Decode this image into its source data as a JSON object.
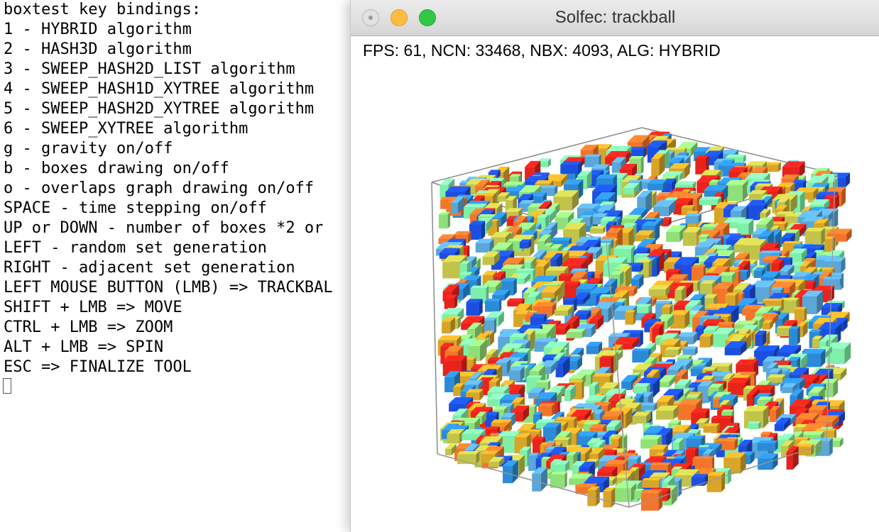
{
  "terminal": {
    "lines": [
      "boxtest key bindings:",
      "1 - HYBRID algorithm",
      "2 - HASH3D algorithm",
      "3 - SWEEP_HASH2D_LIST algorithm",
      "4 - SWEEP_HASH1D_XYTREE algorithm",
      "5 - SWEEP_HASH2D_XYTREE algorithm",
      "6 - SWEEP_XYTREE algorithm",
      "g - gravity on/off",
      "b - boxes drawing on/off",
      "o - overlaps graph drawing on/off",
      "SPACE - time stepping on/off",
      "UP or DOWN - number of boxes *2 or",
      "LEFT - random set generation",
      "RIGHT - adjacent set generation",
      "LEFT MOUSE BUTTON (LMB) => TRACKBAL",
      "SHIFT + LMB => MOVE",
      "CTRL + LMB => ZOOM",
      "ALT + LMB => SPIN",
      "ESC => FINALIZE TOOL"
    ]
  },
  "window": {
    "title": "Solfec: trackball",
    "stats": "FPS: 61, NCN: 33468, NBX: 4093, ALG: HYBRID",
    "traffic_lights": {
      "close": "close-button-icon",
      "minimize": "minimize-button-icon",
      "maximize": "maximize-button-icon"
    }
  },
  "scene": {
    "description_icon": "box-cloud-3d",
    "box_colors": [
      "#e8231c",
      "#f4752a",
      "#d9a528",
      "#c2c34a",
      "#8fe07a",
      "#7ef0a8",
      "#5aa7d8",
      "#1b4fe0",
      "#2b8bd6"
    ]
  }
}
